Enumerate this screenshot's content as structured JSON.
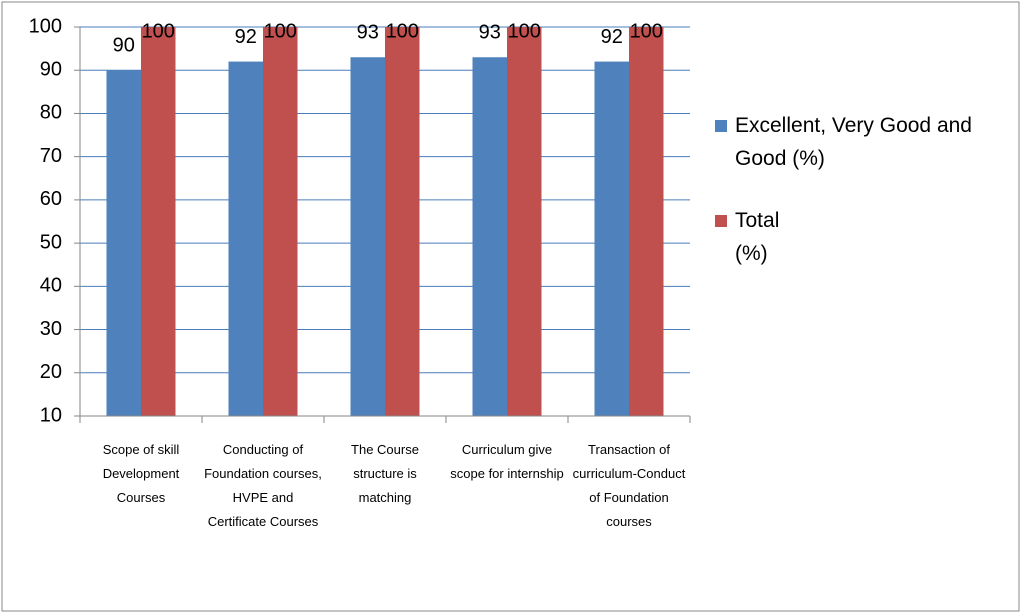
{
  "chart_data": {
    "type": "bar",
    "categories": [
      "Scope of skill Development Courses",
      "Conducting of Foundation courses, HVPE and Certificate Courses",
      "The Course structure is matching",
      "Curriculum give scope for internship",
      "Transaction of curriculum-Conduct of Foundation courses"
    ],
    "series": [
      {
        "name": "Excellent, Very Good and Good (%)",
        "color": "#4f81bd",
        "values": [
          90,
          92,
          93,
          93,
          92
        ]
      },
      {
        "name": "Total (%)",
        "color": "#c0504d",
        "values": [
          100,
          100,
          100,
          100,
          100
        ]
      }
    ],
    "ylim": [
      10,
      100
    ],
    "yticks": [
      10,
      20,
      30,
      40,
      50,
      60,
      70,
      80,
      90,
      100
    ],
    "grid": true,
    "legend": "right"
  }
}
